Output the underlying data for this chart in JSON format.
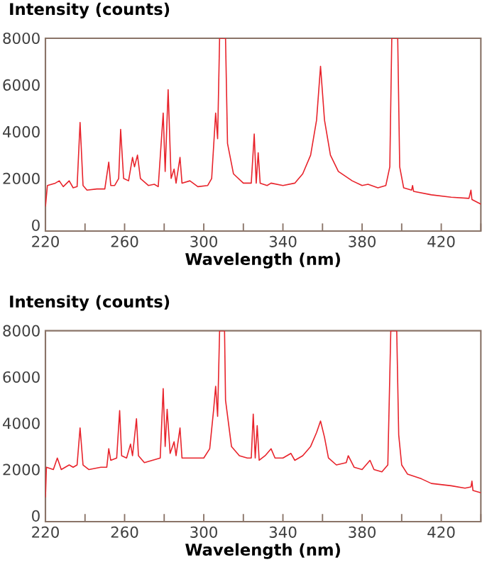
{
  "chart_data": [
    {
      "type": "line",
      "ylabel": "Intensity (counts)",
      "xlabel": "Wavelength (nm)",
      "color": "#e8232b",
      "xlim": [
        220,
        440
      ],
      "ylim": [
        -250,
        8000
      ],
      "xticks": [
        220,
        {
          "value": 240,
          "label": null
        },
        260,
        {
          "value": 280,
          "label": null
        },
        300,
        {
          "value": 320,
          "label": null
        },
        340,
        {
          "value": 360,
          "label": null
        },
        380,
        {
          "value": 400,
          "label": null
        },
        420,
        {
          "value": 440,
          "label": null
        }
      ],
      "yticks": [
        0,
        2000,
        4000,
        6000,
        8000
      ],
      "x": [
        220,
        221,
        225,
        227,
        229,
        232,
        234,
        236,
        237.5,
        239,
        241,
        246,
        250,
        252,
        253,
        255,
        257,
        258,
        259.5,
        262,
        264,
        265,
        266.5,
        268,
        272,
        275,
        277,
        279.5,
        280.5,
        282,
        283.5,
        285,
        286,
        288,
        289,
        293,
        297,
        302,
        304,
        306,
        307,
        308,
        311,
        312,
        315,
        320,
        324,
        325.5,
        326.5,
        327.5,
        328.5,
        332,
        334,
        340,
        346,
        350,
        354,
        357,
        359,
        361,
        364,
        368,
        375,
        380,
        383,
        388,
        392,
        394,
        395,
        398,
        399,
        401,
        405,
        405.5,
        406,
        415,
        425,
        434,
        435,
        435.5,
        440
      ],
      "values": [
        800,
        1700,
        1800,
        1900,
        1650,
        1900,
        1600,
        1650,
        4400,
        1700,
        1500,
        1550,
        1550,
        2700,
        1700,
        1700,
        2000,
        4100,
        2000,
        1900,
        2900,
        2500,
        3000,
        2000,
        1700,
        1750,
        1650,
        4800,
        2300,
        5800,
        2000,
        2400,
        1800,
        2900,
        1800,
        1900,
        1650,
        1700,
        2000,
        4800,
        3700,
        8000,
        8000,
        3500,
        2200,
        1800,
        1800,
        3900,
        1800,
        3100,
        1800,
        1700,
        1800,
        1700,
        1800,
        2200,
        3000,
        4500,
        6800,
        4500,
        3000,
        2300,
        1900,
        1700,
        1750,
        1600,
        1700,
        2500,
        8000,
        8000,
        2500,
        1600,
        1500,
        1700,
        1450,
        1300,
        1200,
        1150,
        1500,
        1100,
        900
      ]
    },
    {
      "type": "line",
      "ylabel": "Intensity (counts)",
      "xlabel": "Wavelength (nm)",
      "color": "#e8232b",
      "xlim": [
        220,
        440
      ],
      "ylim": [
        -250,
        8000
      ],
      "xticks": [
        220,
        {
          "value": 240,
          "label": null
        },
        260,
        {
          "value": 280,
          "label": null
        },
        300,
        {
          "value": 320,
          "label": null
        },
        340,
        {
          "value": 360,
          "label": null
        },
        380,
        {
          "value": 400,
          "label": null
        },
        420,
        {
          "value": 440,
          "label": null
        }
      ],
      "yticks": [
        0,
        2000,
        4000,
        6000,
        8000
      ],
      "x": [
        220,
        220.5,
        224,
        226,
        228,
        232,
        234,
        236,
        237.5,
        239,
        242,
        248,
        251,
        252,
        253,
        256,
        257.5,
        258.5,
        261,
        263,
        264,
        266,
        267,
        270,
        274,
        278,
        279.5,
        280.5,
        281.5,
        283,
        285,
        286,
        288,
        289,
        295,
        300,
        303,
        305,
        306,
        307,
        308,
        310.5,
        311,
        314,
        318,
        322,
        324,
        325,
        326,
        327,
        328,
        331,
        334,
        336,
        340,
        344,
        346,
        350,
        354,
        357,
        359,
        361,
        363,
        367,
        372,
        373,
        376,
        380,
        384,
        386,
        390,
        393,
        394.5,
        397.5,
        398.5,
        400,
        403,
        410,
        415,
        425,
        432,
        435,
        435.5,
        436,
        440
      ],
      "values": [
        800,
        2100,
        2000,
        2500,
        2000,
        2200,
        2100,
        2200,
        3800,
        2200,
        2000,
        2100,
        2100,
        2900,
        2400,
        2500,
        4550,
        2600,
        2500,
        3100,
        2600,
        4200,
        2600,
        2300,
        2400,
        2500,
        5500,
        3000,
        4600,
        2700,
        3200,
        2600,
        3800,
        2500,
        2500,
        2500,
        2900,
        4600,
        5600,
        4300,
        8000,
        8000,
        5000,
        3000,
        2600,
        2500,
        2500,
        4400,
        2500,
        3900,
        2400,
        2600,
        2900,
        2500,
        2500,
        2700,
        2400,
        2600,
        3000,
        3600,
        4100,
        3400,
        2500,
        2200,
        2300,
        2600,
        2100,
        2000,
        2400,
        2000,
        1900,
        2200,
        8000,
        8000,
        3500,
        2200,
        1800,
        1600,
        1400,
        1300,
        1200,
        1250,
        1500,
        1100,
        1000
      ]
    }
  ]
}
